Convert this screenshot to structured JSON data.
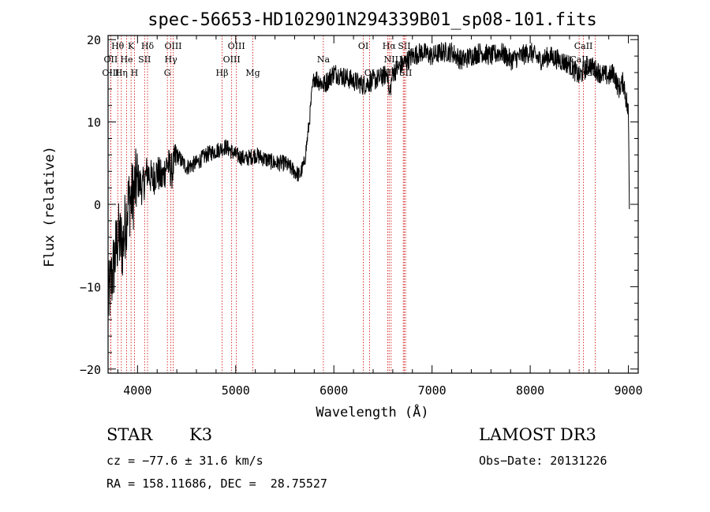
{
  "chart_data": {
    "type": "line",
    "title": "spec-56653-HD102901N294339B01_sp08-101.fits",
    "xlabel": "Wavelength (Å)",
    "ylabel": "Flux (relative)",
    "xlim": [
      3700,
      9100
    ],
    "ylim": [
      -20.5,
      20.5
    ],
    "x_ticks": [
      4000,
      5000,
      6000,
      7000,
      8000,
      9000
    ],
    "x_tick_labels": [
      "4000",
      "5000",
      "6000",
      "7000",
      "8000",
      "9000"
    ],
    "y_ticks": [
      -20,
      -10,
      0,
      10,
      20
    ],
    "y_tick_labels": [
      "−20",
      "−10",
      "0",
      "10",
      "20"
    ],
    "grid": false,
    "series": [
      {
        "name": "flux",
        "color": "#000000",
        "x": [
          3700,
          3750,
          3800,
          3850,
          3900,
          3950,
          4000,
          4050,
          4100,
          4150,
          4200,
          4250,
          4300,
          4350,
          4400,
          4500,
          4600,
          4700,
          4800,
          4900,
          5000,
          5100,
          5200,
          5300,
          5400,
          5500,
          5600,
          5650,
          5700,
          5750,
          5780,
          5800,
          5850,
          5900,
          6000,
          6100,
          6200,
          6300,
          6400,
          6500,
          6550,
          6563,
          6600,
          6700,
          6800,
          6900,
          7000,
          7100,
          7200,
          7300,
          7400,
          7500,
          7600,
          7700,
          7800,
          7900,
          8000,
          8100,
          8200,
          8300,
          8400,
          8500,
          8600,
          8700,
          8800,
          8850,
          8900,
          8950,
          9000,
          9010
        ],
        "y": [
          -12,
          -8,
          -4,
          -5,
          0,
          1,
          3,
          2,
          4,
          3,
          4,
          3,
          5,
          4,
          6,
          4.5,
          5,
          6,
          6.5,
          7,
          6,
          5.5,
          6,
          5.5,
          5,
          5,
          4,
          3.5,
          5,
          10,
          14,
          15.5,
          15,
          14.5,
          16,
          15.5,
          15,
          14.5,
          15,
          15.5,
          16,
          13,
          16,
          17,
          18,
          18.5,
          18,
          18.5,
          18.5,
          17.5,
          18,
          18.5,
          18,
          18.5,
          17.5,
          18,
          18.5,
          17.5,
          18,
          17.5,
          17,
          15.5,
          17,
          16,
          15.5,
          16,
          14,
          15,
          11,
          0
        ]
      }
    ],
    "lines": [
      {
        "label": "Hθ",
        "row": 0,
        "wl": 3798
      },
      {
        "label": "OII",
        "row": 1,
        "wl": 3727
      },
      {
        "label": "OIII",
        "row": 2,
        "wl": 3727
      },
      {
        "label": "He",
        "row": 1,
        "wl": 3889
      },
      {
        "label": "Hη",
        "row": 2,
        "wl": 3835
      },
      {
        "label": "K",
        "row": 0,
        "wl": 3934
      },
      {
        "label": "H",
        "row": 2,
        "wl": 3969
      },
      {
        "label": "SII",
        "row": 1,
        "wl": 4072
      },
      {
        "label": "Hδ",
        "row": 0,
        "wl": 4102
      },
      {
        "label": "OIII",
        "row": 0,
        "wl": 4363
      },
      {
        "label": "Hγ",
        "row": 1,
        "wl": 4340
      },
      {
        "label": "G",
        "row": 2,
        "wl": 4304
      },
      {
        "label": "OIII",
        "row": 0,
        "wl": 5007
      },
      {
        "label": "OIII",
        "row": 1,
        "wl": 4959
      },
      {
        "label": "Hβ",
        "row": 2,
        "wl": 4861
      },
      {
        "label": "Mg",
        "row": 2,
        "wl": 5175
      },
      {
        "label": "Na",
        "row": 1,
        "wl": 5893
      },
      {
        "label": "OI",
        "row": 0,
        "wl": 6300
      },
      {
        "label": "OI",
        "row": 2,
        "wl": 6363
      },
      {
        "label": "Hα",
        "row": 0,
        "wl": 6563
      },
      {
        "label": "NII",
        "row": 1,
        "wl": 6583
      },
      {
        "label": "NII",
        "row": 2,
        "wl": 6548
      },
      {
        "label": "SII",
        "row": 0,
        "wl": 6717
      },
      {
        "label": "Li",
        "row": 1,
        "wl": 6707
      },
      {
        "label": "SII",
        "row": 2,
        "wl": 6731
      },
      {
        "label": "CaII",
        "row": 0,
        "wl": 8542
      },
      {
        "label": "CaII",
        "row": 1,
        "wl": 8498
      },
      {
        "label": "CaII",
        "row": 2,
        "wl": 8662
      }
    ]
  },
  "info": {
    "object_type": "STAR",
    "subclass": "K3",
    "survey": "LAMOST DR3",
    "cz": "cz = −77.6 ± 31.6 km/s",
    "obs_date": "Obs−Date: 20131226",
    "coords": "RA = 158.11686, DEC =  28.75527"
  },
  "colors": {
    "axis": "#000000",
    "spectrum": "#000000",
    "line_marker": "#cc0000"
  }
}
